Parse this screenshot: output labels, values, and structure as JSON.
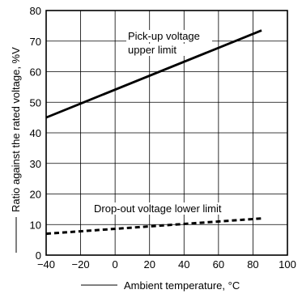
{
  "chart_data": {
    "type": "line",
    "title": "",
    "xlabel": "Ambient temperature, °C",
    "ylabel": "Ratio against the rated voltage, %V",
    "xlim": [
      -40,
      100
    ],
    "ylim": [
      0,
      80
    ],
    "grid": true,
    "x_ticks": [
      "-40",
      "-20",
      "0",
      "20",
      "40",
      "60",
      "80",
      "100"
    ],
    "y_ticks": [
      "0",
      "10",
      "20",
      "30",
      "40",
      "50",
      "60",
      "70",
      "80"
    ],
    "series": [
      {
        "name": "Pick-up voltage upper limit",
        "name_lines": [
          "Pick-up voltage",
          "upper limit"
        ],
        "style": "solid",
        "x": [
          -40,
          85
        ],
        "y": [
          45,
          73.5
        ]
      },
      {
        "name": "Drop-out voltage lower limit",
        "name_lines": [
          "Drop-out voltage lower limit"
        ],
        "style": "dashed",
        "x": [
          -40,
          85
        ],
        "y": [
          7,
          12
        ]
      }
    ]
  }
}
